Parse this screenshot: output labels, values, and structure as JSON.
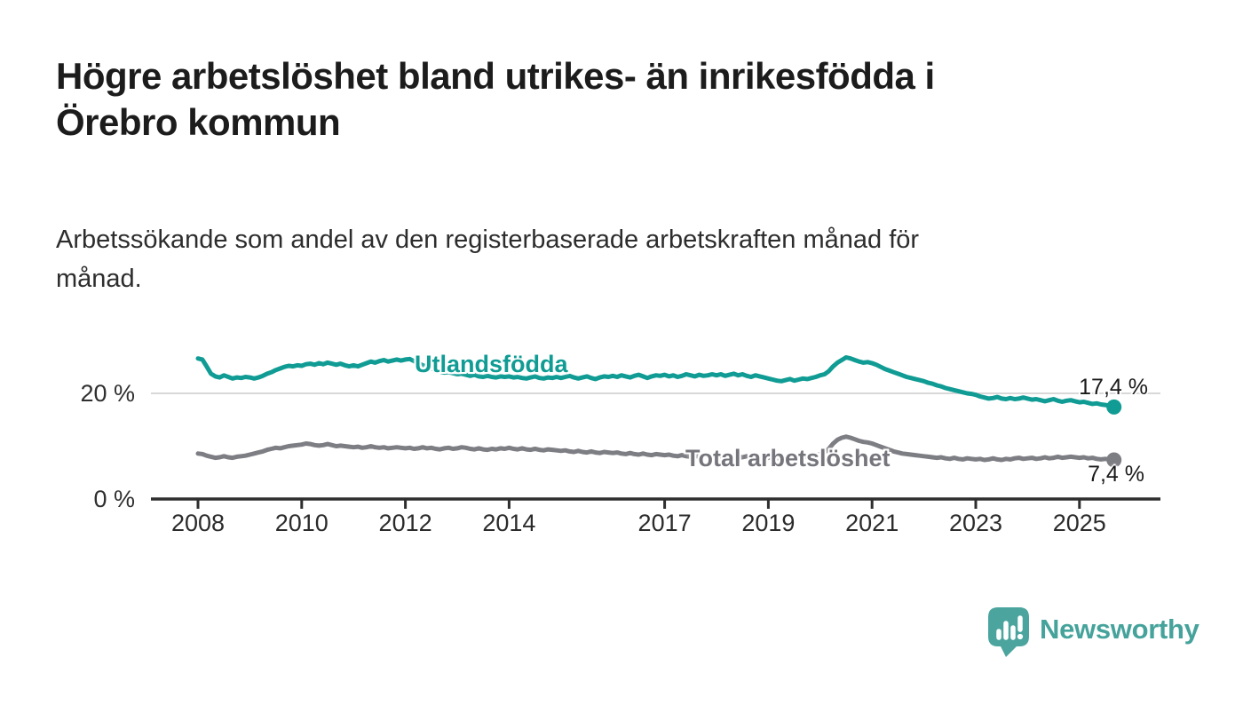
{
  "header": {
    "title_line1": "Högre arbetslöshet bland utrikes- än inrikesfödda i",
    "title_line2": "Örebro kommun",
    "subtitle_line1": "Arbetssökande som andel av den registerbaserade arbetskraften månad för",
    "subtitle_line2": "månad."
  },
  "colors": {
    "accent_teal": "#109c94",
    "series_gray": "#7d7d84",
    "gray_label_text": "#75757c",
    "axis": "#2e2e2e",
    "gridline": "#d8d8d8",
    "logo_teal": "#45a39b"
  },
  "chart_data": {
    "type": "line",
    "title": "Högre arbetslöshet bland utrikes- än inrikesfödda i Örebro kommun",
    "subtitle": "Arbetssökande som andel av den registerbaserade arbetskraften månad för månad.",
    "x_unit": "month",
    "x_start_year": 2008,
    "x_tick_years": [
      2008,
      2010,
      2012,
      2014,
      2017,
      2019,
      2021,
      2023,
      2025
    ],
    "ylim": [
      0,
      29
    ],
    "grid_values": [
      20
    ],
    "grid_on": true,
    "legend_position": "inline-labels",
    "y_labels": [
      {
        "value": 20,
        "text": "20 %"
      },
      {
        "value": 0,
        "text": "0 %"
      }
    ],
    "series": [
      {
        "name": "Utlandsfödda",
        "color": "#109c94",
        "end_label": "17,4 %",
        "end_value": 17.4,
        "values": [
          26.6,
          26.4,
          25.1,
          23.7,
          23.2,
          23.0,
          23.4,
          23.1,
          22.8,
          23.0,
          22.9,
          23.1,
          23.0,
          22.8,
          23.0,
          23.3,
          23.7,
          24.0,
          24.4,
          24.7,
          25.0,
          25.2,
          25.1,
          25.3,
          25.2,
          25.5,
          25.6,
          25.4,
          25.7,
          25.5,
          25.8,
          25.6,
          25.4,
          25.6,
          25.3,
          25.1,
          25.3,
          25.1,
          25.4,
          25.7,
          26.0,
          25.8,
          26.1,
          26.3,
          26.0,
          26.2,
          26.4,
          26.2,
          26.4,
          26.5,
          26.1,
          25.7,
          25.3,
          25.0,
          24.7,
          24.4,
          24.1,
          23.9,
          24.0,
          23.8,
          23.6,
          23.7,
          23.5,
          23.3,
          23.5,
          23.2,
          23.1,
          23.3,
          23.1,
          23.0,
          23.2,
          23.1,
          23.2,
          23.0,
          23.1,
          22.9,
          22.8,
          23.0,
          23.2,
          22.9,
          22.8,
          23.0,
          22.9,
          23.1,
          22.9,
          23.1,
          23.3,
          23.0,
          22.8,
          23.0,
          23.2,
          22.9,
          22.7,
          23.0,
          23.2,
          23.1,
          23.3,
          23.1,
          23.4,
          23.2,
          23.0,
          23.3,
          23.5,
          23.2,
          22.9,
          23.2,
          23.4,
          23.3,
          23.5,
          23.2,
          23.4,
          23.1,
          23.3,
          23.6,
          23.4,
          23.2,
          23.5,
          23.3,
          23.4,
          23.6,
          23.4,
          23.6,
          23.3,
          23.5,
          23.7,
          23.4,
          23.6,
          23.3,
          23.1,
          23.4,
          23.2,
          23.0,
          22.8,
          22.6,
          22.4,
          22.3,
          22.5,
          22.7,
          22.4,
          22.6,
          22.8,
          22.7,
          22.9,
          23.1,
          23.4,
          23.6,
          24.2,
          25.1,
          25.8,
          26.3,
          26.8,
          26.6,
          26.3,
          26.0,
          25.8,
          25.9,
          25.7,
          25.4,
          25.0,
          24.6,
          24.3,
          24.0,
          23.7,
          23.4,
          23.1,
          22.9,
          22.7,
          22.5,
          22.3,
          22.0,
          21.8,
          21.5,
          21.3,
          21.0,
          20.8,
          20.6,
          20.4,
          20.2,
          20.0,
          19.9,
          19.7,
          19.4,
          19.2,
          19.0,
          19.1,
          19.3,
          19.0,
          18.9,
          19.1,
          18.9,
          19.0,
          19.2,
          19.0,
          18.8,
          18.9,
          18.7,
          18.5,
          18.7,
          18.9,
          18.6,
          18.4,
          18.6,
          18.7,
          18.5,
          18.3,
          18.4,
          18.2,
          18.0,
          18.1,
          17.9,
          17.8,
          17.6,
          17.4
        ]
      },
      {
        "name": "Total arbetslöshet",
        "color": "#7d7d84",
        "end_label": "7,4 %",
        "end_value": 7.4,
        "values": [
          8.6,
          8.5,
          8.2,
          8.0,
          7.8,
          7.9,
          8.1,
          7.9,
          7.8,
          8.0,
          8.1,
          8.2,
          8.4,
          8.6,
          8.8,
          9.0,
          9.3,
          9.5,
          9.7,
          9.6,
          9.8,
          10.0,
          10.1,
          10.2,
          10.3,
          10.5,
          10.4,
          10.2,
          10.1,
          10.2,
          10.4,
          10.2,
          10.0,
          10.1,
          10.0,
          9.9,
          9.8,
          9.9,
          9.7,
          9.8,
          10.0,
          9.8,
          9.7,
          9.8,
          9.6,
          9.7,
          9.8,
          9.7,
          9.6,
          9.7,
          9.5,
          9.6,
          9.8,
          9.6,
          9.7,
          9.5,
          9.4,
          9.6,
          9.7,
          9.5,
          9.6,
          9.8,
          9.7,
          9.5,
          9.4,
          9.6,
          9.4,
          9.3,
          9.5,
          9.4,
          9.6,
          9.5,
          9.7,
          9.5,
          9.4,
          9.6,
          9.4,
          9.3,
          9.5,
          9.3,
          9.2,
          9.4,
          9.3,
          9.2,
          9.1,
          9.2,
          9.0,
          8.9,
          9.1,
          8.9,
          8.8,
          9.0,
          8.8,
          8.7,
          8.9,
          8.8,
          8.7,
          8.8,
          8.6,
          8.5,
          8.7,
          8.5,
          8.4,
          8.6,
          8.4,
          8.3,
          8.5,
          8.4,
          8.3,
          8.4,
          8.2,
          8.1,
          8.3,
          8.1,
          8.0,
          8.2,
          8.0,
          8.1,
          8.2,
          8.1,
          8.0,
          8.1,
          7.9,
          8.0,
          8.2,
          8.0,
          7.9,
          8.1,
          7.9,
          7.8,
          8.0,
          7.9,
          7.8,
          7.9,
          7.7,
          7.8,
          8.0,
          7.9,
          7.8,
          8.0,
          8.1,
          8.0,
          8.2,
          8.3,
          8.5,
          8.8,
          9.5,
          10.5,
          11.2,
          11.6,
          11.8,
          11.6,
          11.3,
          11.0,
          10.8,
          10.7,
          10.5,
          10.2,
          9.9,
          9.6,
          9.3,
          9.0,
          8.8,
          8.6,
          8.5,
          8.4,
          8.3,
          8.2,
          8.1,
          8.0,
          7.9,
          7.8,
          7.9,
          7.7,
          7.6,
          7.8,
          7.6,
          7.5,
          7.7,
          7.6,
          7.5,
          7.6,
          7.4,
          7.5,
          7.7,
          7.5,
          7.4,
          7.6,
          7.5,
          7.7,
          7.8,
          7.6,
          7.7,
          7.8,
          7.6,
          7.7,
          7.9,
          7.7,
          7.8,
          8.0,
          7.8,
          7.9,
          8.0,
          7.9,
          7.8,
          7.9,
          7.7,
          7.8,
          7.6,
          7.5,
          7.6,
          7.5,
          7.4
        ]
      }
    ]
  },
  "branding": {
    "logo_text": "Newsworthy"
  }
}
